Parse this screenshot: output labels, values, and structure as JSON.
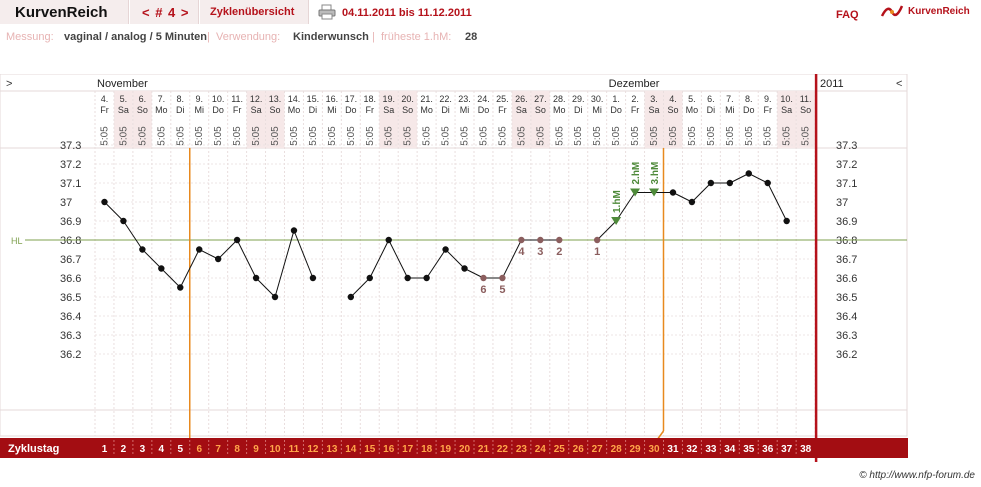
{
  "header": {
    "app_title": "KurvenReich",
    "cycle_nav": "< # 4 >",
    "overview_tab": "Zyklenübersicht",
    "date_range": "04.11.2011 bis 11.12.2011",
    "faq": "FAQ",
    "logo_text": "KurvenReich",
    "print_icon": "printer-icon",
    "logo_icon": "curve-logo-icon"
  },
  "info": {
    "measure_label": "Messung:",
    "measure_value": "vaginal / analog / 5 Minuten",
    "sep1": "|",
    "usage_label": "Verwendung:",
    "usage_value": "Kinderwunsch",
    "sep2": "|",
    "hm_label": "früheste 1.hM:",
    "hm_value": "28"
  },
  "nav": {
    "left_arrow": ">",
    "right_arrow": "<"
  },
  "year_label": "2011",
  "copyright": "© http://www.nfp-forum.de",
  "colors": {
    "accent": "#b5121b",
    "coverline": "#7fa04f",
    "fertile_marker": "#4e8a3a",
    "counted_point": "#8b5e5e",
    "separator": "#e8891e"
  },
  "chart_data": {
    "type": "line",
    "months": [
      {
        "label": "November",
        "start_index": 0
      },
      {
        "label": "Dezember",
        "start_index": 27
      }
    ],
    "days": [
      {
        "date": "4.",
        "weekday": "Fr",
        "time": "5:05",
        "weekend": false
      },
      {
        "date": "5.",
        "weekday": "Sa",
        "time": "5:05",
        "weekend": true
      },
      {
        "date": "6.",
        "weekday": "So",
        "time": "5:05",
        "weekend": true
      },
      {
        "date": "7.",
        "weekday": "Mo",
        "time": "5:05",
        "weekend": false
      },
      {
        "date": "8.",
        "weekday": "Di",
        "time": "5:05",
        "weekend": false
      },
      {
        "date": "9.",
        "weekday": "Mi",
        "time": "5:05",
        "weekend": false
      },
      {
        "date": "10.",
        "weekday": "Do",
        "time": "5:05",
        "weekend": false
      },
      {
        "date": "11.",
        "weekday": "Fr",
        "time": "5:05",
        "weekend": false
      },
      {
        "date": "12.",
        "weekday": "Sa",
        "time": "5:05",
        "weekend": true
      },
      {
        "date": "13.",
        "weekday": "So",
        "time": "5:05",
        "weekend": true
      },
      {
        "date": "14.",
        "weekday": "Mo",
        "time": "5:05",
        "weekend": false
      },
      {
        "date": "15.",
        "weekday": "Di",
        "time": "5:05",
        "weekend": false
      },
      {
        "date": "16.",
        "weekday": "Mi",
        "time": "5:05",
        "weekend": false
      },
      {
        "date": "17.",
        "weekday": "Do",
        "time": "5:05",
        "weekend": false
      },
      {
        "date": "18.",
        "weekday": "Fr",
        "time": "5:05",
        "weekend": false
      },
      {
        "date": "19.",
        "weekday": "Sa",
        "time": "5:05",
        "weekend": true
      },
      {
        "date": "20.",
        "weekday": "So",
        "time": "5:05",
        "weekend": true
      },
      {
        "date": "21.",
        "weekday": "Mo",
        "time": "5:05",
        "weekend": false
      },
      {
        "date": "22.",
        "weekday": "Di",
        "time": "5:05",
        "weekend": false
      },
      {
        "date": "23.",
        "weekday": "Mi",
        "time": "5:05",
        "weekend": false
      },
      {
        "date": "24.",
        "weekday": "Do",
        "time": "5:05",
        "weekend": false
      },
      {
        "date": "25.",
        "weekday": "Fr",
        "time": "5:05",
        "weekend": false
      },
      {
        "date": "26.",
        "weekday": "Sa",
        "time": "5:05",
        "weekend": true
      },
      {
        "date": "27.",
        "weekday": "So",
        "time": "5:05",
        "weekend": true
      },
      {
        "date": "28.",
        "weekday": "Mo",
        "time": "5:05",
        "weekend": false
      },
      {
        "date": "29.",
        "weekday": "Di",
        "time": "5:05",
        "weekend": false
      },
      {
        "date": "30.",
        "weekday": "Mi",
        "time": "5:05",
        "weekend": false
      },
      {
        "date": "1.",
        "weekday": "Do",
        "time": "5:05",
        "weekend": false
      },
      {
        "date": "2.",
        "weekday": "Fr",
        "time": "5:05",
        "weekend": false
      },
      {
        "date": "3.",
        "weekday": "Sa",
        "time": "5:05",
        "weekend": true
      },
      {
        "date": "4.",
        "weekday": "So",
        "time": "5:05",
        "weekend": true
      },
      {
        "date": "5.",
        "weekday": "Mo",
        "time": "5:05",
        "weekend": false
      },
      {
        "date": "6.",
        "weekday": "Di",
        "time": "5:05",
        "weekend": false
      },
      {
        "date": "7.",
        "weekday": "Mi",
        "time": "5:05",
        "weekend": false
      },
      {
        "date": "8.",
        "weekday": "Do",
        "time": "5:05",
        "weekend": false
      },
      {
        "date": "9.",
        "weekday": "Fr",
        "time": "5:05",
        "weekend": false
      },
      {
        "date": "10.",
        "weekday": "Sa",
        "time": "5:05",
        "weekend": true
      },
      {
        "date": "11.",
        "weekday": "So",
        "time": "5:05",
        "weekend": true
      }
    ],
    "temperatures": [
      37.0,
      36.9,
      36.75,
      36.65,
      36.55,
      36.75,
      36.7,
      36.8,
      36.6,
      36.5,
      36.85,
      36.6,
      null,
      36.5,
      36.6,
      36.8,
      36.6,
      36.6,
      36.75,
      36.65,
      36.6,
      36.6,
      36.8,
      36.8,
      36.8,
      null,
      36.8,
      36.9,
      37.05,
      37.05,
      37.05,
      37.0,
      37.1,
      37.1,
      37.15,
      37.1,
      36.9,
      null
    ],
    "counted_labels": [
      {
        "index": 20,
        "label": "6"
      },
      {
        "index": 21,
        "label": "5"
      },
      {
        "index": 22,
        "label": "4"
      },
      {
        "index": 23,
        "label": "3"
      },
      {
        "index": 24,
        "label": "2"
      },
      {
        "index": 26,
        "label": "1"
      }
    ],
    "high_markers": [
      {
        "index": 27,
        "label": "1.hM"
      },
      {
        "index": 28,
        "label": "2.hM"
      },
      {
        "index": 29,
        "label": "3.hM"
      }
    ],
    "coverline": 36.8,
    "coverline_label": "HL",
    "y_ticks": [
      37.3,
      37.2,
      37.1,
      37.0,
      36.9,
      36.8,
      36.7,
      36.6,
      36.5,
      36.4,
      36.3,
      36.2
    ],
    "y_tick_labels": [
      "37.3",
      "37.2",
      "37.1",
      "37",
      "36.9",
      "36.8",
      "36.7",
      "36.6",
      "36.5",
      "36.4",
      "36.3",
      "36.2"
    ],
    "ylim": [
      36.1,
      37.4
    ],
    "row_label": "Zyklustag",
    "cycle_days": [
      1,
      2,
      3,
      4,
      5,
      6,
      7,
      8,
      9,
      10,
      11,
      12,
      13,
      14,
      15,
      16,
      17,
      18,
      19,
      20,
      21,
      22,
      23,
      24,
      25,
      26,
      27,
      28,
      29,
      30,
      31,
      32,
      33,
      34,
      35,
      36,
      37,
      38
    ],
    "fertile_window": [
      6,
      30
    ]
  }
}
